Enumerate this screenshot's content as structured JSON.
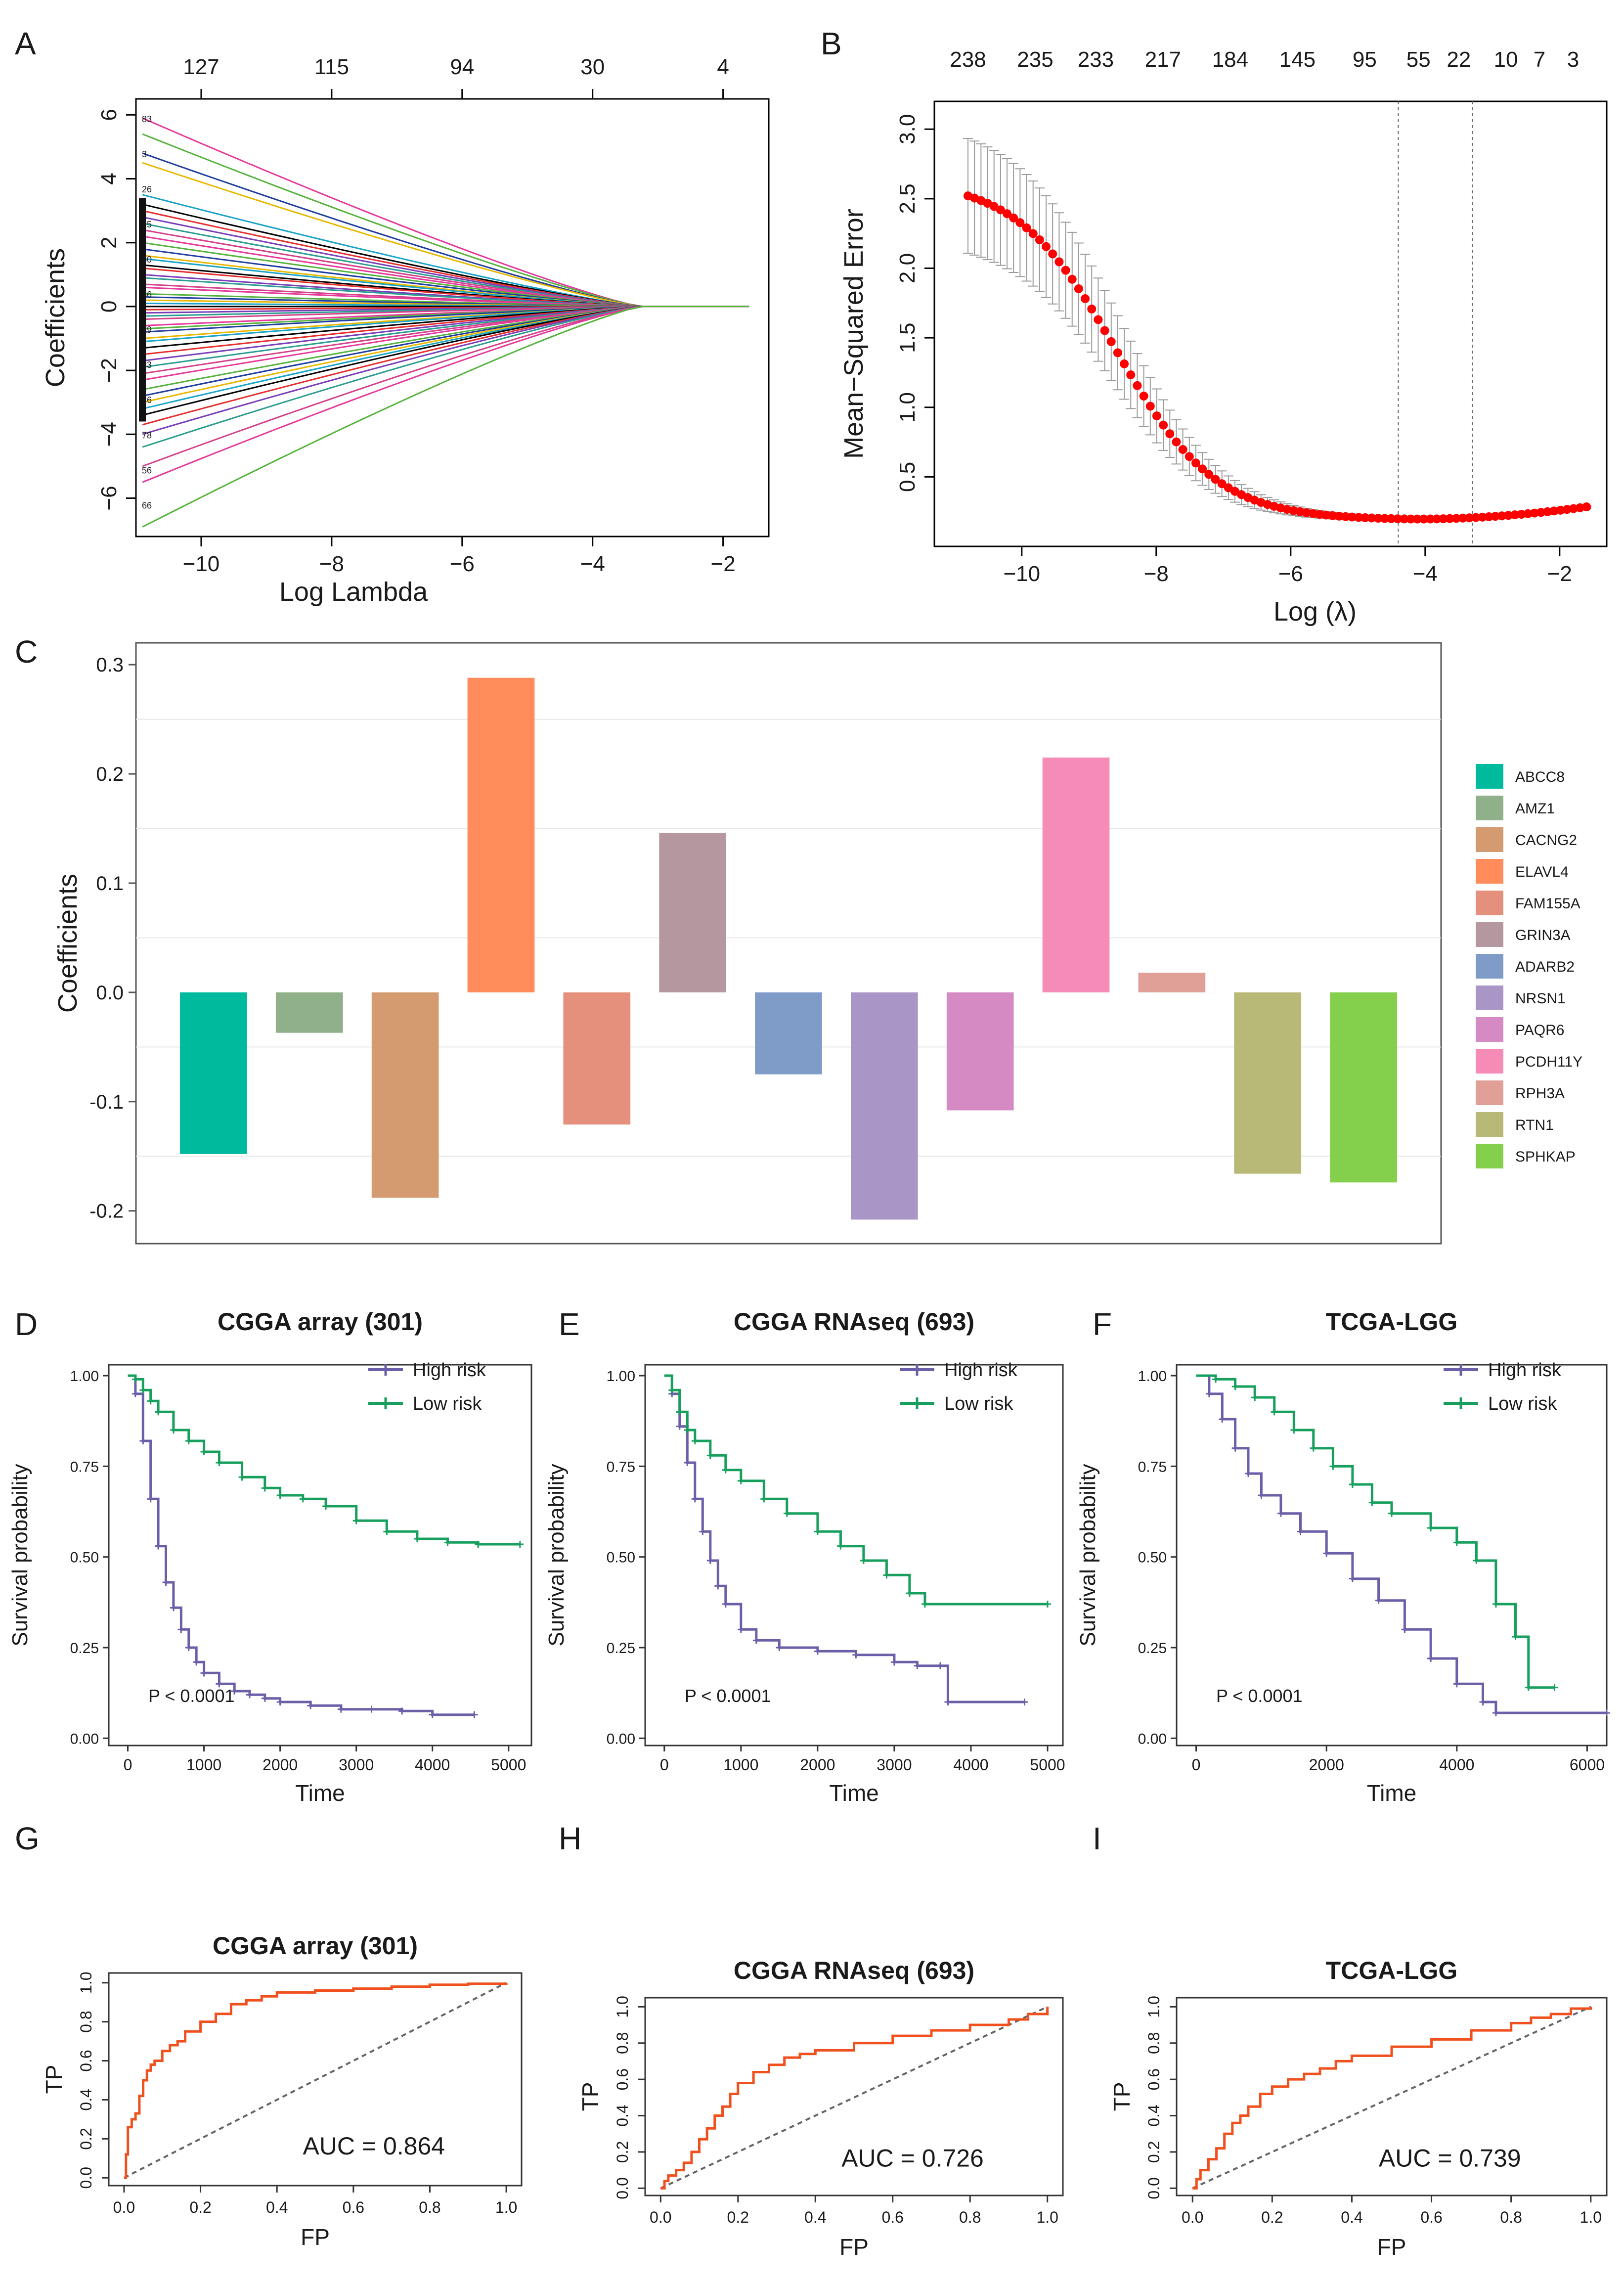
{
  "figure_title": "Multi-panel LASSO / survival / ROC figure",
  "chart_data": [
    {
      "id": "A",
      "panel_label": "A",
      "type": "line",
      "title": "",
      "xlabel": "Log Lambda",
      "ylabel": "Coefficients",
      "xlim": [
        -11,
        -1.3
      ],
      "ylim": [
        -7.2,
        6.5
      ],
      "xticks": [
        -10,
        -8,
        -6,
        -4,
        -2
      ],
      "yticks": [
        -6,
        -4,
        -2,
        0,
        2,
        4,
        6
      ],
      "top_axis": {
        "positions": [
          -10,
          -8,
          -6,
          -4,
          -2
        ],
        "labels": [
          "127",
          "115",
          "94",
          "30",
          "4"
        ]
      },
      "x_start": -10.9,
      "x_end": -1.6,
      "coefficient_paths_start": [
        5.9,
        5.4,
        4.8,
        4.5,
        3.5,
        3.2,
        3.0,
        2.8,
        2.6,
        2.4,
        2.2,
        2.0,
        1.8,
        1.6,
        1.5,
        1.3,
        1.2,
        1.0,
        0.9,
        0.7,
        0.6,
        0.4,
        0.3,
        0.2,
        0.1,
        0.0,
        -0.1,
        -0.2,
        -0.3,
        -0.4,
        -0.6,
        -0.7,
        -0.8,
        -1.0,
        -1.1,
        -1.3,
        -1.5,
        -1.7,
        -1.9,
        -2.1,
        -2.3,
        -2.6,
        -2.8,
        -3.0,
        -3.2,
        -3.4,
        -3.7,
        -4.0,
        -4.4,
        -5.0,
        -5.5,
        -6.9
      ],
      "path_colors": [
        "#e6399b",
        "#56b33d",
        "#1f3d9e",
        "#e8b800",
        "#19a3c7",
        "#000000",
        "#e62e2e",
        "#7a3db8",
        "#2a9d8f",
        "#d4408a"
      ],
      "side_labels": [
        "83",
        "3",
        "26",
        "25",
        "50",
        "36",
        "79",
        "33",
        "26",
        "78",
        "56",
        "66"
      ]
    },
    {
      "id": "B",
      "panel_label": "B",
      "type": "scatter",
      "title": "",
      "xlabel": "Log (λ)",
      "ylabel": "Mean−Squared Error",
      "xlim": [
        -11.3,
        -1.3
      ],
      "ylim": [
        0.0,
        3.2
      ],
      "xticks": [
        -10,
        -8,
        -6,
        -4,
        -2
      ],
      "yticks": [
        0.5,
        1.0,
        1.5,
        2.0,
        2.5,
        3.0
      ],
      "top_axis": {
        "positions": [
          -10.8,
          -9.8,
          -8.9,
          -7.9,
          -6.9,
          -5.9,
          -4.9,
          -4.1,
          -3.5,
          -2.8,
          -2.3,
          -1.8
        ],
        "labels": [
          "238",
          "235",
          "233",
          "217",
          "184",
          "145",
          "95",
          "55",
          "22",
          "10",
          "7",
          "3"
        ]
      },
      "x_range": [
        -10.8,
        -1.6
      ],
      "n_points": 96,
      "curve_description": "logistic decline from 2.62 to 0.19, min near log(lambda) -4.4",
      "vlines": [
        -4.4,
        -3.3
      ],
      "point_color": "#ff0000"
    },
    {
      "id": "C",
      "panel_label": "C",
      "type": "bar",
      "title": "",
      "xlabel": "",
      "ylabel": "Coefficients",
      "ylim": [
        -0.23,
        0.32
      ],
      "yticks": [
        -0.2,
        -0.1,
        0.0,
        0.1,
        0.2,
        0.3
      ],
      "ytick_labels": [
        "-0.2",
        "-0.1",
        "0.0",
        "0.1",
        "0.2",
        "0.3"
      ],
      "gridlines": [
        0.25,
        0.15,
        0.05,
        -0.05,
        -0.15
      ],
      "categories": [
        "ABCC8",
        "AMZ1",
        "CACNG2",
        "ELAVL4",
        "FAM155A",
        "GRIN3A",
        "ADARB2",
        "NRSN1",
        "PAQR6",
        "PCDH11Y",
        "RPH3A",
        "RTN1",
        "SPHKAP"
      ],
      "values": [
        -0.148,
        -0.037,
        -0.188,
        0.288,
        -0.121,
        0.146,
        -0.075,
        -0.208,
        -0.108,
        0.215,
        0.018,
        -0.166,
        -0.174
      ],
      "colors": [
        "#00ba9e",
        "#8fb088",
        "#d49b70",
        "#ff8c5a",
        "#e5907c",
        "#b5979f",
        "#7f9cc9",
        "#a996c6",
        "#d58ac3",
        "#f78bb8",
        "#e0a097",
        "#b8b877",
        "#84cf4c"
      ],
      "legend": "right"
    },
    {
      "id": "D",
      "panel_label": "D",
      "type": "line",
      "title": "CGGA array (301)",
      "xlabel": "Time",
      "ylabel": "Survival probability",
      "xlim": [
        -250,
        5300
      ],
      "ylim": [
        -0.02,
        1.03
      ],
      "xticks": [
        0,
        1000,
        2000,
        3000,
        4000,
        5000
      ],
      "yticks": [
        0.0,
        0.25,
        0.5,
        0.75,
        1.0
      ],
      "ytick_labels": [
        "0.00",
        "0.25",
        "0.50",
        "0.75",
        "1.00"
      ],
      "series": [
        {
          "name": "High risk",
          "color": "#6b5fa8",
          "x": [
            0,
            100,
            200,
            300,
            400,
            500,
            600,
            700,
            800,
            900,
            1000,
            1200,
            1400,
            1600,
            1800,
            2000,
            2400,
            2800,
            3200,
            3600,
            4000,
            4550
          ],
          "y": [
            1.0,
            0.95,
            0.82,
            0.66,
            0.53,
            0.43,
            0.36,
            0.3,
            0.25,
            0.21,
            0.18,
            0.15,
            0.13,
            0.12,
            0.11,
            0.1,
            0.09,
            0.08,
            0.08,
            0.075,
            0.065,
            0.065
          ]
        },
        {
          "name": "Low risk",
          "color": "#17a05d",
          "x": [
            0,
            100,
            200,
            300,
            400,
            600,
            800,
            1000,
            1200,
            1500,
            1800,
            2000,
            2300,
            2600,
            3000,
            3400,
            3800,
            4200,
            4600,
            5150
          ],
          "y": [
            1.0,
            0.99,
            0.96,
            0.93,
            0.9,
            0.85,
            0.82,
            0.79,
            0.76,
            0.72,
            0.69,
            0.67,
            0.66,
            0.64,
            0.6,
            0.57,
            0.55,
            0.54,
            0.535,
            0.535
          ]
        }
      ],
      "annotation": "P < 0.0001"
    },
    {
      "id": "E",
      "panel_label": "E",
      "type": "line",
      "title": "CGGA RNAseq (693)",
      "xlabel": "Time",
      "ylabel": "Survival probability",
      "xlim": [
        -250,
        5200
      ],
      "ylim": [
        -0.02,
        1.03
      ],
      "xticks": [
        0,
        1000,
        2000,
        3000,
        4000,
        5000
      ],
      "yticks": [
        0.0,
        0.25,
        0.5,
        0.75,
        1.0
      ],
      "ytick_labels": [
        "0.00",
        "0.25",
        "0.50",
        "0.75",
        "1.00"
      ],
      "series": [
        {
          "name": "High risk",
          "color": "#6b5fa8",
          "x": [
            0,
            100,
            200,
            300,
            400,
            500,
            600,
            700,
            800,
            1000,
            1200,
            1500,
            2000,
            2500,
            3000,
            3300,
            3600,
            3700,
            4700
          ],
          "y": [
            1.0,
            0.95,
            0.86,
            0.76,
            0.66,
            0.57,
            0.49,
            0.42,
            0.37,
            0.3,
            0.27,
            0.25,
            0.24,
            0.23,
            0.21,
            0.2,
            0.2,
            0.1,
            0.1
          ]
        },
        {
          "name": "Low risk",
          "color": "#17a05d",
          "x": [
            0,
            100,
            200,
            300,
            400,
            600,
            800,
            1000,
            1300,
            1600,
            2000,
            2300,
            2600,
            2900,
            3200,
            3400,
            5000
          ],
          "y": [
            1.0,
            0.96,
            0.9,
            0.85,
            0.82,
            0.78,
            0.74,
            0.71,
            0.66,
            0.62,
            0.57,
            0.53,
            0.49,
            0.45,
            0.4,
            0.37,
            0.37
          ]
        }
      ],
      "annotation": "P < 0.0001"
    },
    {
      "id": "F",
      "panel_label": "F",
      "type": "line",
      "title": "TCGA-LGG",
      "xlabel": "Time",
      "ylabel": "Survival probability",
      "xlim": [
        -300,
        6300
      ],
      "ylim": [
        -0.02,
        1.03
      ],
      "xticks": [
        0,
        2000,
        4000,
        6000
      ],
      "yticks": [
        0.0,
        0.25,
        0.5,
        0.75,
        1.0
      ],
      "ytick_labels": [
        "0.00",
        "0.25",
        "0.50",
        "0.75",
        "1.00"
      ],
      "series": [
        {
          "name": "High risk",
          "color": "#6b5fa8",
          "x": [
            0,
            200,
            400,
            600,
            800,
            1000,
            1300,
            1600,
            2000,
            2400,
            2800,
            3200,
            3600,
            4000,
            4400,
            4600,
            6300
          ],
          "y": [
            1.0,
            0.95,
            0.88,
            0.8,
            0.73,
            0.67,
            0.62,
            0.57,
            0.51,
            0.44,
            0.38,
            0.3,
            0.22,
            0.15,
            0.1,
            0.07,
            0.07
          ]
        },
        {
          "name": "Low risk",
          "color": "#17a05d",
          "x": [
            0,
            300,
            600,
            900,
            1200,
            1500,
            1800,
            2100,
            2400,
            2700,
            3000,
            3600,
            4000,
            4300,
            4600,
            4900,
            5100,
            5500
          ],
          "y": [
            1.0,
            0.99,
            0.97,
            0.94,
            0.9,
            0.85,
            0.8,
            0.75,
            0.7,
            0.65,
            0.62,
            0.58,
            0.54,
            0.49,
            0.37,
            0.28,
            0.14,
            0.14
          ]
        }
      ],
      "annotation": "P < 0.0001"
    },
    {
      "id": "G",
      "panel_label": "G",
      "type": "line",
      "title": "CGGA array (301)",
      "xlabel": "FP",
      "ylabel": "TP",
      "xlim": [
        -0.04,
        1.04
      ],
      "ylim": [
        -0.04,
        1.05
      ],
      "xticks": [
        0.0,
        0.2,
        0.4,
        0.6,
        0.8,
        1.0
      ],
      "yticks": [
        0.0,
        0.2,
        0.4,
        0.6,
        0.8,
        1.0
      ],
      "tick_labels": [
        "0.0",
        "0.2",
        "0.4",
        "0.6",
        "0.8",
        "1.0"
      ],
      "series": [
        {
          "name": "ROC",
          "color": "#f0501e",
          "x": [
            0,
            0.005,
            0.01,
            0.02,
            0.03,
            0.04,
            0.05,
            0.06,
            0.07,
            0.08,
            0.1,
            0.12,
            0.14,
            0.16,
            0.2,
            0.24,
            0.28,
            0.32,
            0.36,
            0.4,
            0.5,
            0.6,
            0.7,
            0.8,
            0.9,
            1.0
          ],
          "y": [
            0,
            0.12,
            0.26,
            0.3,
            0.33,
            0.42,
            0.5,
            0.55,
            0.58,
            0.6,
            0.65,
            0.68,
            0.7,
            0.75,
            0.8,
            0.84,
            0.89,
            0.91,
            0.93,
            0.95,
            0.96,
            0.97,
            0.98,
            0.99,
            0.995,
            1.0
          ]
        }
      ],
      "auc_label": "AUC =  0.864"
    },
    {
      "id": "H",
      "panel_label": "H",
      "type": "line",
      "title": "CGGA RNAseq (693)",
      "xlabel": "FP",
      "ylabel": "TP",
      "xlim": [
        -0.04,
        1.04
      ],
      "ylim": [
        -0.04,
        1.05
      ],
      "xticks": [
        0.0,
        0.2,
        0.4,
        0.6,
        0.8,
        1.0
      ],
      "yticks": [
        0.0,
        0.2,
        0.4,
        0.6,
        0.8,
        1.0
      ],
      "tick_labels": [
        "0.0",
        "0.2",
        "0.4",
        "0.6",
        "0.8",
        "1.0"
      ],
      "series": [
        {
          "name": "ROC",
          "color": "#f0501e",
          "x": [
            0,
            0.01,
            0.02,
            0.04,
            0.06,
            0.08,
            0.1,
            0.12,
            0.14,
            0.16,
            0.18,
            0.2,
            0.24,
            0.28,
            0.32,
            0.36,
            0.4,
            0.5,
            0.6,
            0.7,
            0.8,
            0.9,
            0.95,
            1.0
          ],
          "y": [
            0,
            0.04,
            0.07,
            0.1,
            0.14,
            0.2,
            0.27,
            0.33,
            0.4,
            0.45,
            0.52,
            0.58,
            0.64,
            0.68,
            0.72,
            0.74,
            0.76,
            0.8,
            0.84,
            0.87,
            0.9,
            0.93,
            0.96,
            1.0
          ]
        }
      ],
      "auc_label": "AUC =  0.726"
    },
    {
      "id": "I",
      "panel_label": "I",
      "type": "line",
      "title": "TCGA-LGG",
      "xlabel": "FP",
      "ylabel": "TP",
      "xlim": [
        -0.04,
        1.04
      ],
      "ylim": [
        -0.04,
        1.05
      ],
      "xticks": [
        0.0,
        0.2,
        0.4,
        0.6,
        0.8,
        1.0
      ],
      "yticks": [
        0.0,
        0.2,
        0.4,
        0.6,
        0.8,
        1.0
      ],
      "tick_labels": [
        "0.0",
        "0.2",
        "0.4",
        "0.6",
        "0.8",
        "1.0"
      ],
      "series": [
        {
          "name": "ROC",
          "color": "#f0501e",
          "x": [
            0,
            0.01,
            0.02,
            0.04,
            0.06,
            0.08,
            0.1,
            0.12,
            0.14,
            0.17,
            0.2,
            0.24,
            0.28,
            0.32,
            0.36,
            0.4,
            0.5,
            0.6,
            0.7,
            0.8,
            0.85,
            0.9,
            0.95,
            1.0
          ],
          "y": [
            0,
            0.05,
            0.1,
            0.16,
            0.22,
            0.3,
            0.36,
            0.4,
            0.45,
            0.52,
            0.56,
            0.6,
            0.63,
            0.66,
            0.7,
            0.73,
            0.78,
            0.82,
            0.87,
            0.91,
            0.94,
            0.96,
            0.99,
            1.0
          ]
        }
      ],
      "auc_label": "AUC =  0.739"
    }
  ]
}
